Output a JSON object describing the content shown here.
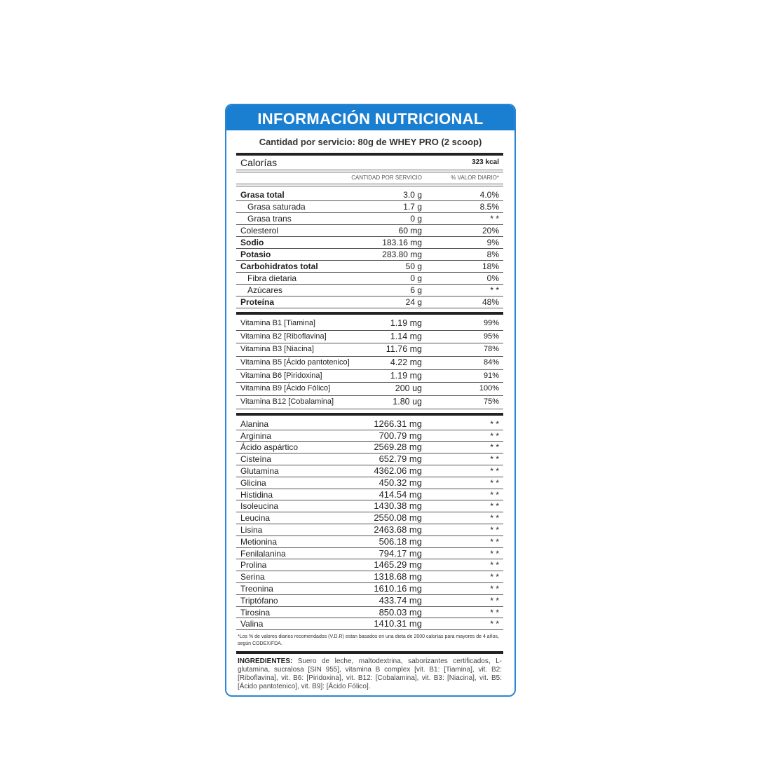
{
  "title": "INFORMACIÓN NUTRICIONAL",
  "serving": "Cantidad por servicio: 80g de WHEY PRO (2 scoop)",
  "calories": {
    "label": "Calorías",
    "value": "323 kcal"
  },
  "columns": {
    "amount": "CANTIDAD POR SERVICIO",
    "dv": "% VALOR DIARIO*"
  },
  "nutrients": [
    {
      "name": "Grasa total",
      "amount": "3.0 g",
      "dv": "4.0%",
      "bold": true
    },
    {
      "name": "Grasa saturada",
      "amount": "1.7 g",
      "dv": "8.5%",
      "indent": true
    },
    {
      "name": "Grasa trans",
      "amount": "0 g",
      "dv": "* *",
      "indent": true
    },
    {
      "name": "Colesterol",
      "amount": "60 mg",
      "dv": "20%"
    },
    {
      "name": "Sodio",
      "amount": "183.16 mg",
      "dv": "9%",
      "bold": true
    },
    {
      "name": "Potasio",
      "amount": "283.80 mg",
      "dv": "8%",
      "bold": true
    },
    {
      "name": "Carbohidratos total",
      "amount": "50 g",
      "dv": "18%",
      "bold": true
    },
    {
      "name": "Fibra dietaria",
      "amount": "0 g",
      "dv": "0%",
      "indent": true
    },
    {
      "name": "Azúcares",
      "amount": "6 g",
      "dv": "* *",
      "indent": true
    },
    {
      "name": "Proteína",
      "amount": "24 g",
      "dv": "48%",
      "bold": true
    }
  ],
  "vitamins": [
    {
      "name": "Vitamina B1 [Tiamina]",
      "amount": "1.19 mg",
      "dv": "99%"
    },
    {
      "name": "Vitamina B2 [Riboflavina]",
      "amount": "1.14 mg",
      "dv": "95%"
    },
    {
      "name": "Vitamina B3 [Niacina]",
      "amount": "11.76 mg",
      "dv": "78%"
    },
    {
      "name": "Vitamina B5 [Ácido pantotenico]",
      "amount": "4.22 mg",
      "dv": "84%"
    },
    {
      "name": "Vitamina B6 [Piridoxina]",
      "amount": "1.19 mg",
      "dv": "91%"
    },
    {
      "name": "Vitamina B9 [Ácido Fólico]",
      "amount": "200 ug",
      "dv": "100%"
    },
    {
      "name": "Vitamina B12 [Cobalamina]",
      "amount": "1.80 ug",
      "dv": "75%"
    }
  ],
  "amino_acids": [
    {
      "name": "Alanina",
      "amount": "1266.31 mg",
      "dv": "* *"
    },
    {
      "name": "Arginina",
      "amount": "700.79 mg",
      "dv": "* *"
    },
    {
      "name": "Ácido aspártico",
      "amount": "2569.28 mg",
      "dv": "* *"
    },
    {
      "name": "Cisteína",
      "amount": "652.79 mg",
      "dv": "* *"
    },
    {
      "name": "Glutamina",
      "amount": "4362.06 mg",
      "dv": "* *"
    },
    {
      "name": "Glicina",
      "amount": "450.32 mg",
      "dv": "* *"
    },
    {
      "name": "Histidina",
      "amount": "414.54 mg",
      "dv": "* *"
    },
    {
      "name": "Isoleucina",
      "amount": "1430.38 mg",
      "dv": "* *"
    },
    {
      "name": "Leucina",
      "amount": "2550.08 mg",
      "dv": "* *"
    },
    {
      "name": "Lisina",
      "amount": "2463.68 mg",
      "dv": "* *"
    },
    {
      "name": "Metionina",
      "amount": "506.18 mg",
      "dv": "* *"
    },
    {
      "name": "Fenilalanina",
      "amount": "794.17 mg",
      "dv": "* *"
    },
    {
      "name": "Prolina",
      "amount": "1465.29 mg",
      "dv": "* *"
    },
    {
      "name": "Serina",
      "amount": "1318.68 mg",
      "dv": "* *"
    },
    {
      "name": "Treonina",
      "amount": "1610.16 mg",
      "dv": "* *"
    },
    {
      "name": "Triptófano",
      "amount": "433.74 mg",
      "dv": "* *"
    },
    {
      "name": "Tirosina",
      "amount": "850.03 mg",
      "dv": "* *"
    },
    {
      "name": "Valina",
      "amount": "1410.31 mg",
      "dv": "* *"
    }
  ],
  "footnote": "*Los % de valores diarios recomendados (V.D.R) estan basados en una dieta de 2000 calorías para mayores de 4 años, según CODEX/FDA.",
  "ingredients": {
    "label": "INGREDIENTES:",
    "text": " Suero de leche, maltodextrina, saborizantes certificados, L-glutamina, sucralosa [SIN 955], vitamina B complex [vit. B1: [Tiamina], vit. B2: [Riboflavina], vit. B6: [Piridoxina], vit. B12: [Cobalamina], vit. B3: [Niacina], vit. B5: [Ácido pantotenico], vit. B9]: [Ácido Fólico]."
  },
  "colors": {
    "header": "#1b7fd1",
    "border": "#2a86d4"
  }
}
